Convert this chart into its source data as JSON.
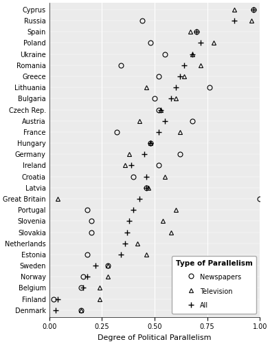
{
  "countries": [
    "Cyprus",
    "Russia",
    "Spain",
    "Poland",
    "Ukraine",
    "Romania",
    "Greece",
    "Lithuania",
    "Bulgaria",
    "Czech Rep.",
    "Austria",
    "France",
    "Hungary",
    "Germany",
    "Ireland",
    "Croatia",
    "Latvia",
    "Great Britain",
    "Portugal",
    "Slovenia",
    "Slovakia",
    "Netherlands",
    "Estonia",
    "Sweden",
    "Norway",
    "Belgium",
    "Finland",
    "Denmark"
  ],
  "newspapers": [
    0.97,
    0.44,
    0.7,
    0.48,
    0.55,
    0.34,
    0.52,
    0.76,
    0.5,
    0.52,
    0.68,
    0.32,
    0.48,
    0.62,
    0.52,
    0.4,
    0.46,
    1.0,
    0.18,
    0.2,
    0.2,
    null,
    0.18,
    0.28,
    0.16,
    0.15,
    0.02,
    0.15
  ],
  "television": [
    0.88,
    0.96,
    0.67,
    0.78,
    0.68,
    0.72,
    0.64,
    0.46,
    0.6,
    0.53,
    0.43,
    0.62,
    0.48,
    0.38,
    0.36,
    0.55,
    0.47,
    0.04,
    0.6,
    0.54,
    0.58,
    0.42,
    0.46,
    0.28,
    0.28,
    0.24,
    0.24,
    0.15
  ],
  "all": [
    0.97,
    0.88,
    0.7,
    0.72,
    0.68,
    0.64,
    0.62,
    0.6,
    0.58,
    0.53,
    0.55,
    0.52,
    0.48,
    0.45,
    0.39,
    0.46,
    0.46,
    0.43,
    0.4,
    0.38,
    0.37,
    0.36,
    0.34,
    0.22,
    0.18,
    0.16,
    0.04,
    0.03
  ],
  "xlim": [
    0.0,
    1.0
  ],
  "xlabel": "Degree of Political Parallelism",
  "legend_title": "Type of Parallelism",
  "legend_entries": [
    "Newspapers",
    "Television",
    "All"
  ],
  "bg_color": "#ebebeb",
  "grid_color": "white",
  "marker_color": "black",
  "marker_size": 5,
  "label_fontsize": 7,
  "xlabel_fontsize": 8,
  "legend_fontsize": 7
}
